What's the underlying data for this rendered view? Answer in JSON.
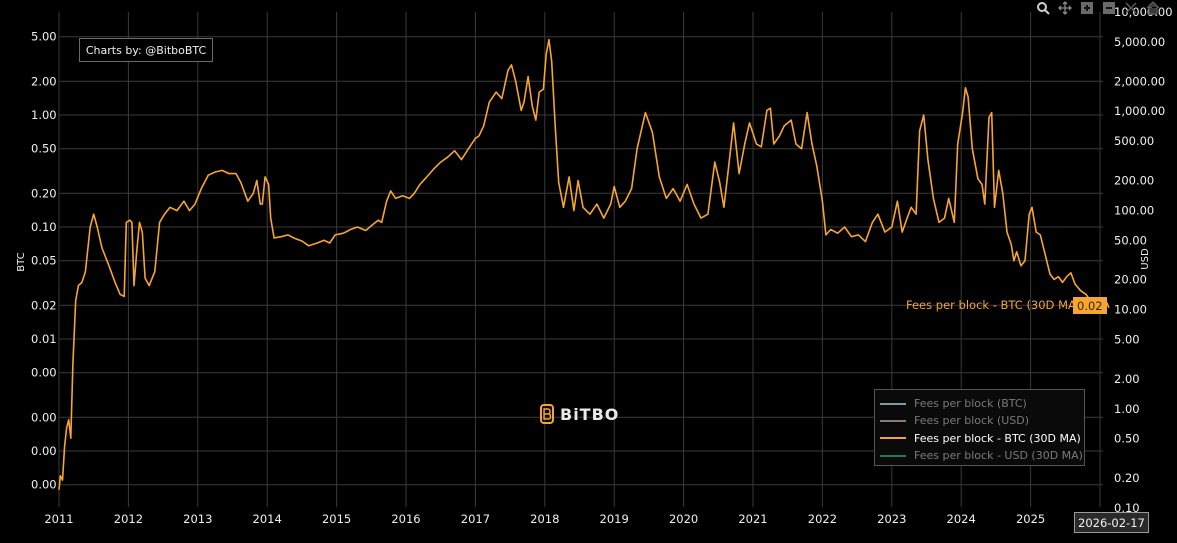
{
  "credit": "Charts by: @BitboBTC",
  "logo": {
    "text": "BiTBO",
    "icon": "bitbo-b-logo-icon"
  },
  "toolbar": [
    {
      "name": "zoom-icon",
      "label": "Zoom"
    },
    {
      "name": "pan-icon",
      "label": "Pan"
    },
    {
      "name": "zoom-in-icon",
      "label": "Zoom in"
    },
    {
      "name": "zoom-out-icon",
      "label": "Zoom out"
    },
    {
      "name": "autoscale-icon",
      "label": "Autoscale"
    },
    {
      "name": "home-icon",
      "label": "Reset axes"
    }
  ],
  "hover": {
    "series_label": "Fees per block - BTC (30D MA)",
    "value": "0.02",
    "date": "2026-02-17"
  },
  "colors": {
    "line": "#f7a531",
    "grid": "#3a3a3a",
    "background": "#000000"
  },
  "chart_data": {
    "type": "line",
    "title": "",
    "xlabel": "",
    "ylabel": "BTC",
    "y2label": "USD",
    "yscale": "log",
    "ylim": [
      0.0004,
      7
    ],
    "y2lim": [
      0.1,
      10000
    ],
    "grid": true,
    "legend_position": "bottom-right",
    "x_ticks": [
      "2011",
      "2012",
      "2013",
      "2014",
      "2015",
      "2016",
      "2017",
      "2018",
      "2019",
      "2020",
      "2021",
      "2022",
      "2023",
      "2024",
      "2025"
    ],
    "y_ticks": [
      {
        "v": 5,
        "label": "5.00"
      },
      {
        "v": 2,
        "label": "2.00"
      },
      {
        "v": 1,
        "label": "1.00"
      },
      {
        "v": 0.5,
        "label": "0.50"
      },
      {
        "v": 0.2,
        "label": "0.20"
      },
      {
        "v": 0.1,
        "label": "0.10"
      },
      {
        "v": 0.05,
        "label": "0.05"
      },
      {
        "v": 0.02,
        "label": "0.02"
      },
      {
        "v": 0.01,
        "label": "0.01"
      },
      {
        "v": 0.005,
        "label": "0.00"
      },
      {
        "v": 0.002,
        "label": "0.00"
      },
      {
        "v": 0.001,
        "label": "0.00"
      },
      {
        "v": 0.0005,
        "label": "0.00"
      }
    ],
    "y2_ticks": [
      "10,000.00",
      "5,000.00",
      "2,000.00",
      "1,000.00",
      "500.00",
      "200.00",
      "100.00",
      "50.00",
      "20.00",
      "10.00",
      "5.00",
      "2.00",
      "1.00",
      "0.50",
      "0.20",
      "0.10"
    ],
    "legend": [
      {
        "label": "Fees per block (BTC)",
        "color": "#7f9aa0",
        "visible": false
      },
      {
        "label": "Fees per block (USD)",
        "color": "#8a7a78",
        "visible": false
      },
      {
        "label": "Fees per block - BTC (30D MA)",
        "color": "#f7a531",
        "visible": true
      },
      {
        "label": "Fees per block - USD (30D MA)",
        "color": "#1f7a55",
        "visible": false
      }
    ],
    "series": [
      {
        "name": "Fees per block - BTC (30D MA)",
        "points": [
          [
            2011.0,
            0.00045
          ],
          [
            2011.02,
            0.0006
          ],
          [
            2011.05,
            0.00055
          ],
          [
            2011.08,
            0.0011
          ],
          [
            2011.11,
            0.0016
          ],
          [
            2011.14,
            0.0019
          ],
          [
            2011.17,
            0.0013
          ],
          [
            2011.2,
            0.006
          ],
          [
            2011.24,
            0.022
          ],
          [
            2011.28,
            0.03
          ],
          [
            2011.33,
            0.032
          ],
          [
            2011.38,
            0.04
          ],
          [
            2011.45,
            0.1
          ],
          [
            2011.5,
            0.13
          ],
          [
            2011.55,
            0.1
          ],
          [
            2011.62,
            0.065
          ],
          [
            2011.72,
            0.045
          ],
          [
            2011.8,
            0.033
          ],
          [
            2011.88,
            0.025
          ],
          [
            2011.94,
            0.024
          ],
          [
            2011.97,
            0.11
          ],
          [
            2012.02,
            0.115
          ],
          [
            2012.05,
            0.11
          ],
          [
            2012.08,
            0.03
          ],
          [
            2012.12,
            0.06
          ],
          [
            2012.16,
            0.11
          ],
          [
            2012.2,
            0.09
          ],
          [
            2012.24,
            0.035
          ],
          [
            2012.3,
            0.03
          ],
          [
            2012.38,
            0.04
          ],
          [
            2012.45,
            0.11
          ],
          [
            2012.52,
            0.13
          ],
          [
            2012.6,
            0.15
          ],
          [
            2012.7,
            0.14
          ],
          [
            2012.8,
            0.17
          ],
          [
            2012.88,
            0.14
          ],
          [
            2012.96,
            0.16
          ],
          [
            2013.05,
            0.22
          ],
          [
            2013.15,
            0.29
          ],
          [
            2013.25,
            0.31
          ],
          [
            2013.35,
            0.32
          ],
          [
            2013.45,
            0.3
          ],
          [
            2013.55,
            0.3
          ],
          [
            2013.62,
            0.25
          ],
          [
            2013.72,
            0.17
          ],
          [
            2013.8,
            0.2
          ],
          [
            2013.85,
            0.26
          ],
          [
            2013.9,
            0.16
          ],
          [
            2013.93,
            0.16
          ],
          [
            2013.97,
            0.28
          ],
          [
            2014.02,
            0.24
          ],
          [
            2014.05,
            0.12
          ],
          [
            2014.1,
            0.08
          ],
          [
            2014.2,
            0.082
          ],
          [
            2014.3,
            0.085
          ],
          [
            2014.4,
            0.079
          ],
          [
            2014.5,
            0.075
          ],
          [
            2014.6,
            0.068
          ],
          [
            2014.72,
            0.072
          ],
          [
            2014.82,
            0.076
          ],
          [
            2014.9,
            0.072
          ],
          [
            2014.98,
            0.085
          ],
          [
            2015.1,
            0.088
          ],
          [
            2015.2,
            0.095
          ],
          [
            2015.3,
            0.1
          ],
          [
            2015.42,
            0.093
          ],
          [
            2015.52,
            0.105
          ],
          [
            2015.6,
            0.115
          ],
          [
            2015.65,
            0.11
          ],
          [
            2015.72,
            0.17
          ],
          [
            2015.78,
            0.21
          ],
          [
            2015.85,
            0.18
          ],
          [
            2015.95,
            0.19
          ],
          [
            2016.05,
            0.18
          ],
          [
            2016.12,
            0.2
          ],
          [
            2016.2,
            0.24
          ],
          [
            2016.3,
            0.28
          ],
          [
            2016.4,
            0.33
          ],
          [
            2016.5,
            0.38
          ],
          [
            2016.6,
            0.42
          ],
          [
            2016.7,
            0.48
          ],
          [
            2016.8,
            0.4
          ],
          [
            2016.9,
            0.5
          ],
          [
            2017.0,
            0.62
          ],
          [
            2017.05,
            0.65
          ],
          [
            2017.12,
            0.8
          ],
          [
            2017.2,
            1.3
          ],
          [
            2017.3,
            1.6
          ],
          [
            2017.38,
            1.4
          ],
          [
            2017.47,
            2.5
          ],
          [
            2017.52,
            2.8
          ],
          [
            2017.58,
            2.0
          ],
          [
            2017.66,
            1.1
          ],
          [
            2017.7,
            1.3
          ],
          [
            2017.76,
            2.2
          ],
          [
            2017.82,
            1.2
          ],
          [
            2017.87,
            0.9
          ],
          [
            2017.92,
            1.6
          ],
          [
            2017.98,
            1.7
          ],
          [
            2018.02,
            3.5
          ],
          [
            2018.06,
            4.7
          ],
          [
            2018.1,
            3.0
          ],
          [
            2018.15,
            0.8
          ],
          [
            2018.2,
            0.25
          ],
          [
            2018.27,
            0.15
          ],
          [
            2018.35,
            0.28
          ],
          [
            2018.42,
            0.14
          ],
          [
            2018.48,
            0.26
          ],
          [
            2018.55,
            0.15
          ],
          [
            2018.65,
            0.13
          ],
          [
            2018.75,
            0.16
          ],
          [
            2018.85,
            0.12
          ],
          [
            2018.95,
            0.16
          ],
          [
            2019.0,
            0.23
          ],
          [
            2019.08,
            0.15
          ],
          [
            2019.16,
            0.17
          ],
          [
            2019.25,
            0.22
          ],
          [
            2019.33,
            0.5
          ],
          [
            2019.45,
            1.05
          ],
          [
            2019.55,
            0.7
          ],
          [
            2019.65,
            0.28
          ],
          [
            2019.75,
            0.18
          ],
          [
            2019.85,
            0.22
          ],
          [
            2019.95,
            0.17
          ],
          [
            2020.05,
            0.24
          ],
          [
            2020.15,
            0.16
          ],
          [
            2020.25,
            0.12
          ],
          [
            2020.35,
            0.13
          ],
          [
            2020.45,
            0.38
          ],
          [
            2020.52,
            0.25
          ],
          [
            2020.58,
            0.15
          ],
          [
            2020.65,
            0.35
          ],
          [
            2020.72,
            0.85
          ],
          [
            2020.8,
            0.3
          ],
          [
            2020.88,
            0.55
          ],
          [
            2020.95,
            0.85
          ],
          [
            2021.05,
            0.55
          ],
          [
            2021.12,
            0.52
          ],
          [
            2021.2,
            1.1
          ],
          [
            2021.25,
            1.15
          ],
          [
            2021.3,
            0.55
          ],
          [
            2021.38,
            0.65
          ],
          [
            2021.45,
            0.8
          ],
          [
            2021.55,
            0.9
          ],
          [
            2021.62,
            0.55
          ],
          [
            2021.7,
            0.5
          ],
          [
            2021.78,
            1.05
          ],
          [
            2021.85,
            0.55
          ],
          [
            2021.92,
            0.35
          ],
          [
            2022.0,
            0.17
          ],
          [
            2022.05,
            0.085
          ],
          [
            2022.12,
            0.095
          ],
          [
            2022.22,
            0.088
          ],
          [
            2022.32,
            0.1
          ],
          [
            2022.42,
            0.082
          ],
          [
            2022.52,
            0.085
          ],
          [
            2022.62,
            0.074
          ],
          [
            2022.72,
            0.11
          ],
          [
            2022.8,
            0.13
          ],
          [
            2022.9,
            0.09
          ],
          [
            2023.0,
            0.1
          ],
          [
            2023.08,
            0.17
          ],
          [
            2023.15,
            0.09
          ],
          [
            2023.22,
            0.12
          ],
          [
            2023.28,
            0.15
          ],
          [
            2023.35,
            0.13
          ],
          [
            2023.4,
            0.72
          ],
          [
            2023.46,
            1.0
          ],
          [
            2023.52,
            0.4
          ],
          [
            2023.6,
            0.18
          ],
          [
            2023.68,
            0.11
          ],
          [
            2023.76,
            0.12
          ],
          [
            2023.82,
            0.18
          ],
          [
            2023.9,
            0.11
          ],
          [
            2023.95,
            0.55
          ],
          [
            2024.02,
            1.05
          ],
          [
            2024.06,
            1.75
          ],
          [
            2024.1,
            1.45
          ],
          [
            2024.16,
            0.5
          ],
          [
            2024.24,
            0.27
          ],
          [
            2024.3,
            0.24
          ],
          [
            2024.34,
            0.16
          ],
          [
            2024.4,
            0.95
          ],
          [
            2024.44,
            1.05
          ],
          [
            2024.48,
            0.15
          ],
          [
            2024.54,
            0.32
          ],
          [
            2024.6,
            0.2
          ],
          [
            2024.66,
            0.09
          ],
          [
            2024.72,
            0.07
          ],
          [
            2024.76,
            0.05
          ],
          [
            2024.8,
            0.06
          ],
          [
            2024.86,
            0.045
          ],
          [
            2024.92,
            0.05
          ],
          [
            2024.98,
            0.13
          ],
          [
            2025.02,
            0.15
          ],
          [
            2025.08,
            0.09
          ],
          [
            2025.14,
            0.085
          ],
          [
            2025.2,
            0.06
          ],
          [
            2025.28,
            0.038
          ],
          [
            2025.34,
            0.034
          ],
          [
            2025.4,
            0.036
          ],
          [
            2025.46,
            0.032
          ],
          [
            2025.52,
            0.036
          ],
          [
            2025.58,
            0.039
          ],
          [
            2025.64,
            0.031
          ],
          [
            2025.72,
            0.027
          ],
          [
            2025.8,
            0.025
          ],
          [
            2025.86,
            0.022
          ],
          [
            2025.94,
            0.021
          ],
          [
            2026.0,
            0.02
          ],
          [
            2026.06,
            0.02
          ],
          [
            2026.1,
            0.021
          ],
          [
            2026.13,
            0.019
          ]
        ]
      }
    ]
  }
}
